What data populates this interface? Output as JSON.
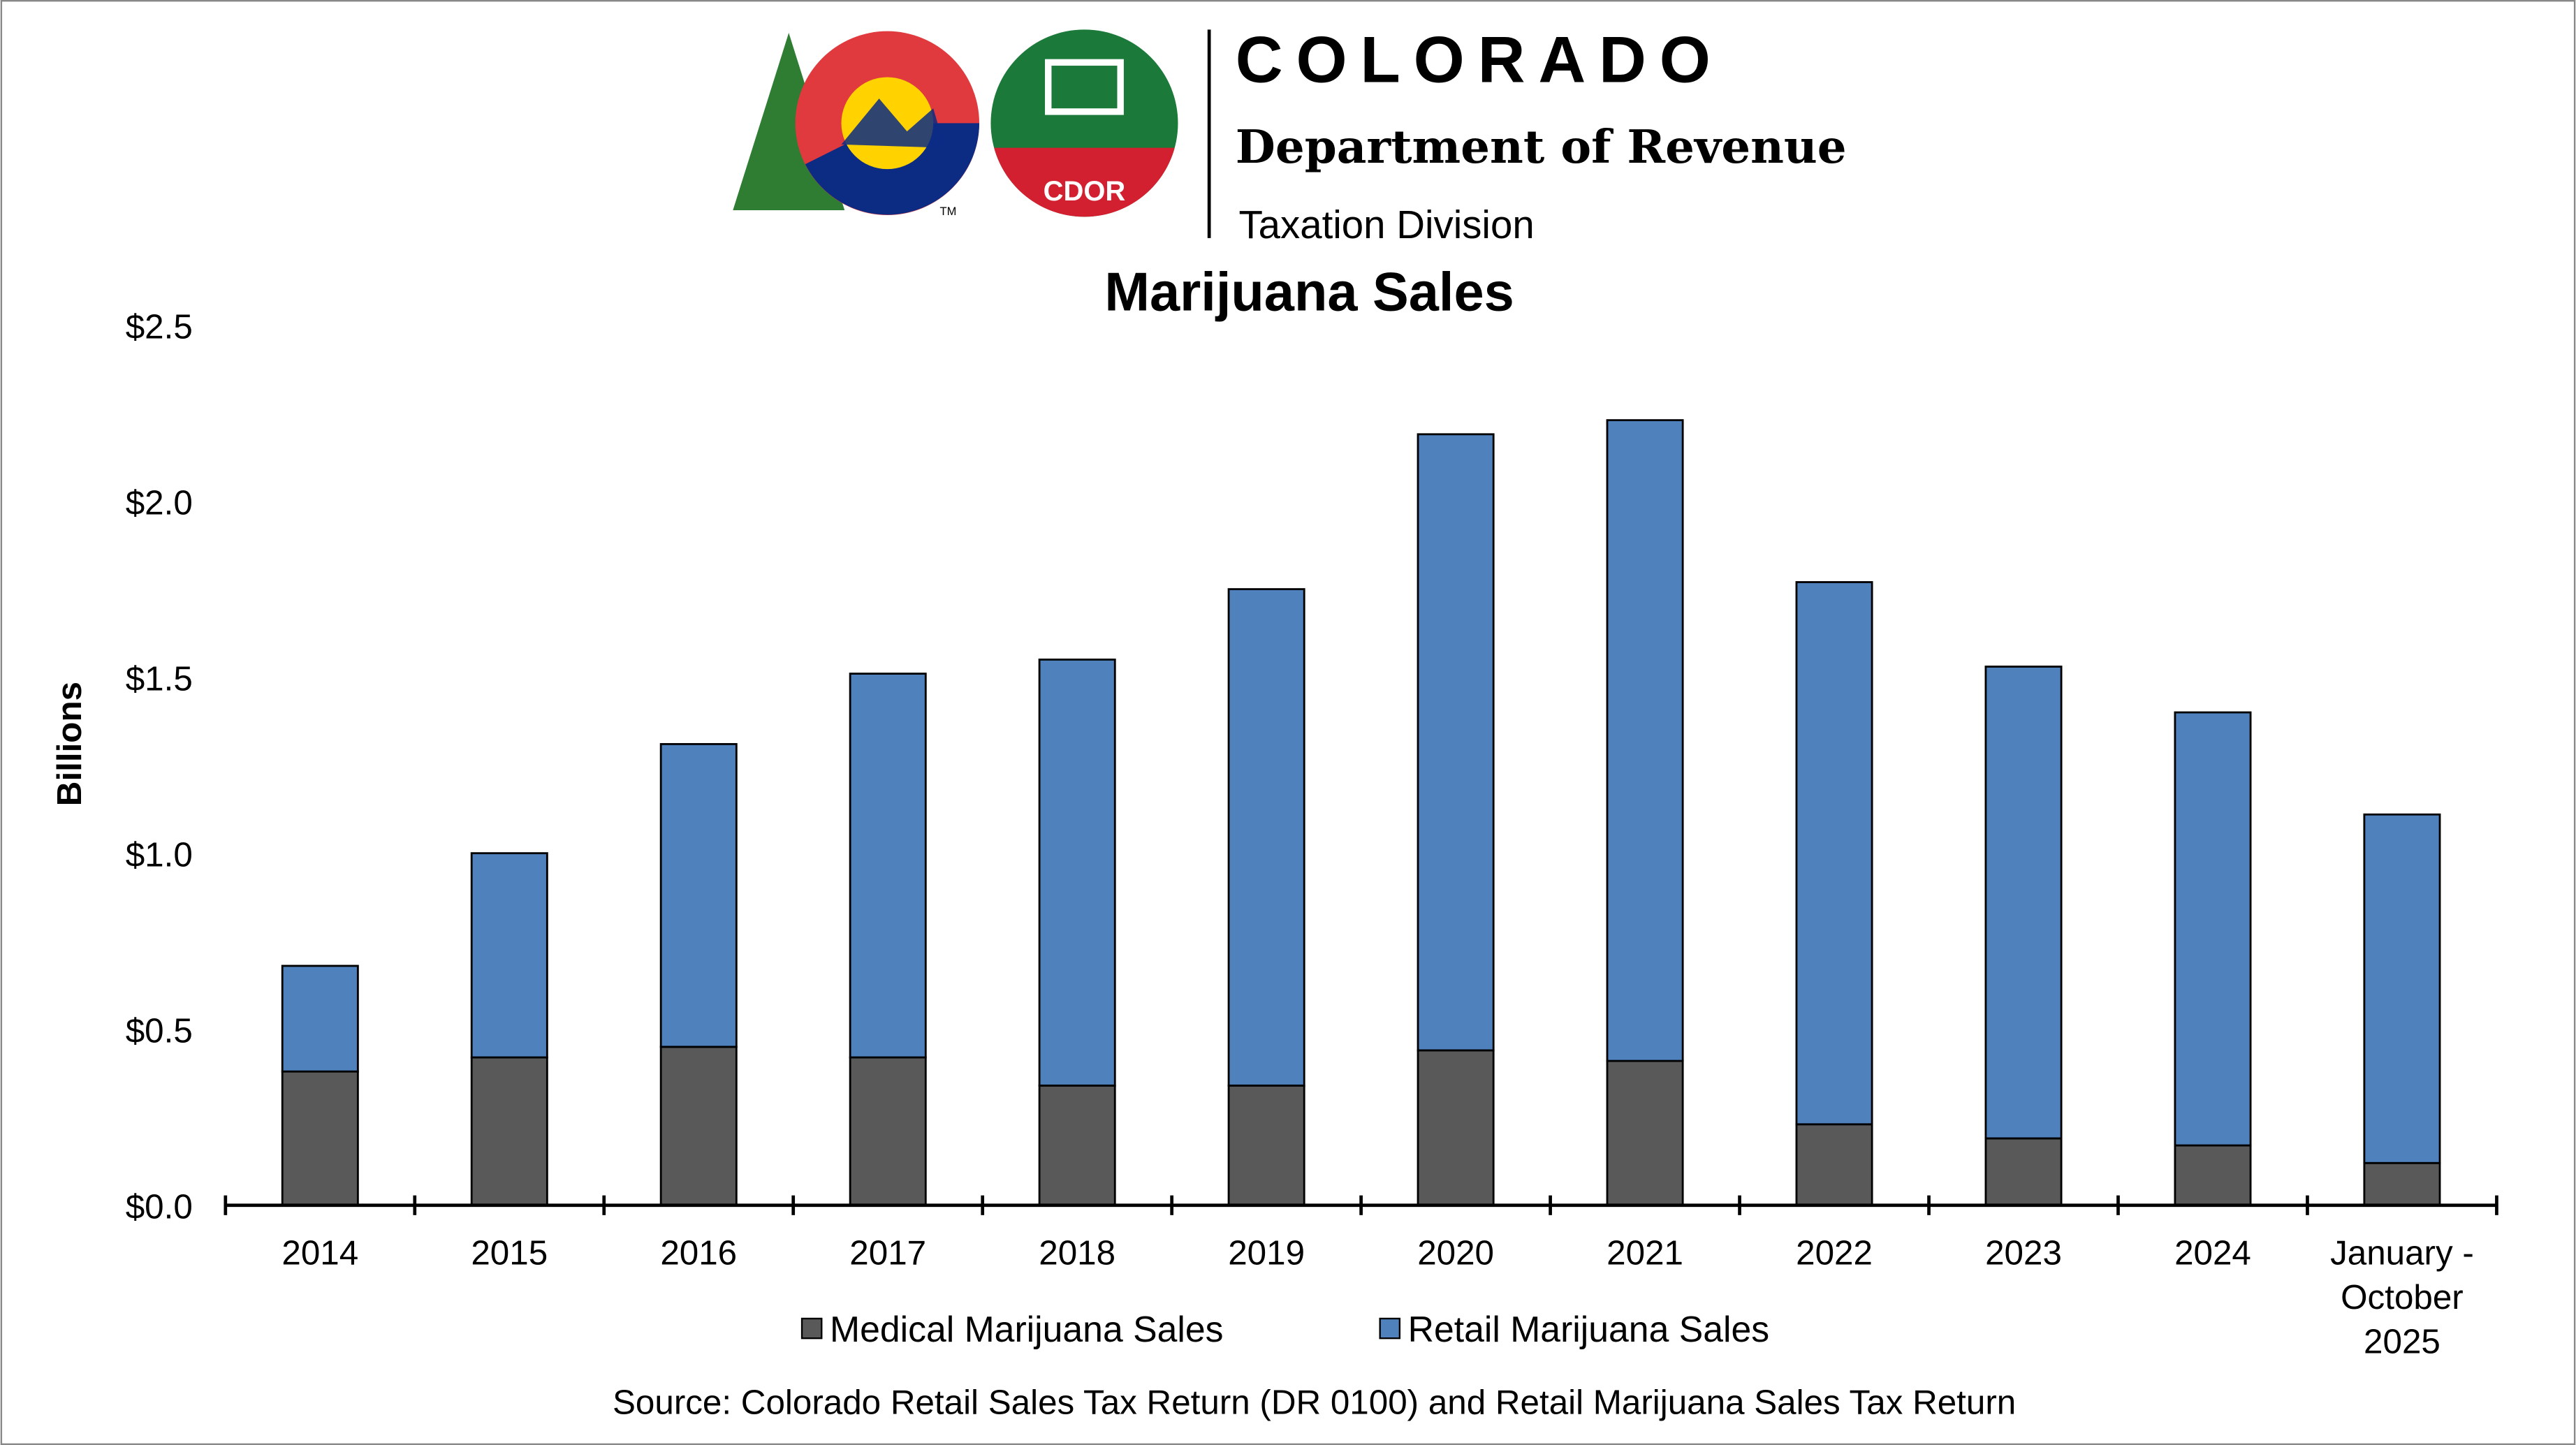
{
  "header": {
    "org_name": "COLORADO",
    "department": "Department of Revenue",
    "division": "Taxation Division",
    "logo_text": "CDOR",
    "trademark": "TM"
  },
  "chart_data": {
    "type": "bar",
    "stacked": true,
    "title": "Marijuana Sales",
    "ylabel": "Billions",
    "xlabel": "",
    "ylim": [
      0,
      2.5
    ],
    "yticks": [
      "$0.0",
      "$0.5",
      "$1.0",
      "$1.5",
      "$2.0",
      "$2.5"
    ],
    "ytick_values": [
      0,
      0.5,
      1.0,
      1.5,
      2.0,
      2.5
    ],
    "categories": [
      "2014",
      "2015",
      "2016",
      "2017",
      "2018",
      "2019",
      "2020",
      "2021",
      "2022",
      "2023",
      "2024",
      "January - October 2025"
    ],
    "category_lines": [
      [
        "2014"
      ],
      [
        "2015"
      ],
      [
        "2016"
      ],
      [
        "2017"
      ],
      [
        "2018"
      ],
      [
        "2019"
      ],
      [
        "2020"
      ],
      [
        "2021"
      ],
      [
        "2022"
      ],
      [
        "2023"
      ],
      [
        "2024"
      ],
      [
        "January -",
        "October",
        "2025"
      ]
    ],
    "series": [
      {
        "name": "Medical Marijuana Sales",
        "color": "#595959",
        "values": [
          0.38,
          0.42,
          0.45,
          0.42,
          0.34,
          0.34,
          0.44,
          0.41,
          0.23,
          0.19,
          0.17,
          0.12
        ]
      },
      {
        "name": "Retail Marijuana Sales",
        "color": "#4F81BD",
        "values": [
          0.3,
          0.58,
          0.86,
          1.09,
          1.21,
          1.41,
          1.75,
          1.82,
          1.54,
          1.34,
          1.23,
          0.99
        ]
      }
    ],
    "legend_position": "bottom",
    "grid": false,
    "source": "Source: Colorado Retail Sales Tax Return (DR 0100) and Retail Marijuana Sales Tax Return"
  }
}
